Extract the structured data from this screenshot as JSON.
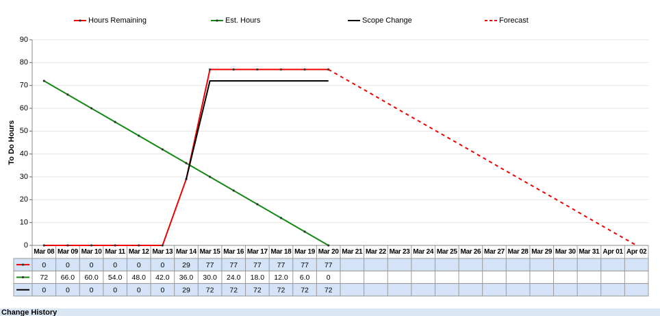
{
  "chart_data": {
    "type": "line",
    "ylabel": "To Do Hours",
    "categories": [
      "Mar 08",
      "Mar 09",
      "Mar 10",
      "Mar 11",
      "Mar 12",
      "Mar 13",
      "Mar 14",
      "Mar 15",
      "Mar 16",
      "Mar 17",
      "Mar 18",
      "Mar 19",
      "Mar 20",
      "Mar 21",
      "Mar 22",
      "Mar 23",
      "Mar 24",
      "Mar 25",
      "Mar 26",
      "Mar 27",
      "Mar 28",
      "Mar 29",
      "Mar 30",
      "Mar 31",
      "Apr 01",
      "Apr 02"
    ],
    "series": [
      {
        "name": "Hours Remaining",
        "color": "#ee0000",
        "markers": true,
        "table": true,
        "values": [
          0,
          0,
          0,
          0,
          0,
          0,
          29,
          77,
          77,
          77,
          77,
          77,
          77,
          null,
          null,
          null,
          null,
          null,
          null,
          null,
          null,
          null,
          null,
          null,
          null,
          null
        ]
      },
      {
        "name": "Est. Hours",
        "color": "#118811",
        "markers": true,
        "table": true,
        "values": [
          72,
          66,
          60,
          54,
          48,
          42,
          36,
          30,
          24,
          18,
          12,
          6,
          0,
          null,
          null,
          null,
          null,
          null,
          null,
          null,
          null,
          null,
          null,
          null,
          null,
          null
        ],
        "value_labels": [
          "72",
          "66.0",
          "60.0",
          "54.0",
          "48.0",
          "42.0",
          "36.0",
          "30.0",
          "24.0",
          "18.0",
          "12.0",
          "6.0",
          "0",
          null,
          null,
          null,
          null,
          null,
          null,
          null,
          null,
          null,
          null,
          null,
          null,
          null
        ]
      },
      {
        "name": "Scope Change",
        "color": "#000000",
        "markers": false,
        "table": true,
        "values": [
          null,
          null,
          null,
          null,
          null,
          null,
          29,
          72,
          72,
          72,
          72,
          72,
          72,
          null,
          null,
          null,
          null,
          null,
          null,
          null,
          null,
          null,
          null,
          null,
          null,
          null
        ],
        "table_values": [
          0,
          0,
          0,
          0,
          0,
          0,
          29,
          72,
          72,
          72,
          72,
          72,
          72,
          null,
          null,
          null,
          null,
          null,
          null,
          null,
          null,
          null,
          null,
          null,
          null,
          null
        ]
      },
      {
        "name": "Forecast",
        "color": "#ee0000",
        "markers": false,
        "table": false,
        "dashed": true,
        "values": [
          null,
          null,
          null,
          null,
          null,
          null,
          null,
          null,
          null,
          null,
          null,
          null,
          77,
          71.1,
          65.2,
          59.2,
          53.3,
          47.4,
          41.5,
          35.5,
          29.6,
          23.7,
          17.8,
          11.8,
          5.9,
          0
        ]
      }
    ],
    "ylim": [
      0,
      90
    ],
    "yticks": [
      0,
      10,
      20,
      30,
      40,
      50,
      60,
      70,
      80,
      90
    ],
    "grid": true
  },
  "footer": {
    "heading": "Change History"
  }
}
